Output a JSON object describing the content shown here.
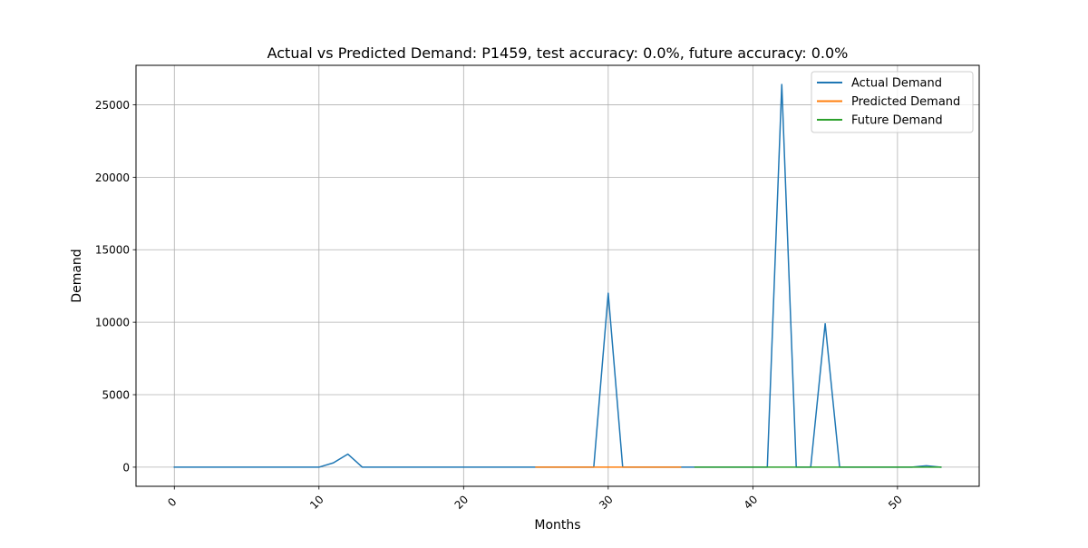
{
  "chart_data": {
    "type": "line",
    "title": "Actual vs Predicted Demand: P1459, test accuracy: 0.0%, future accuracy: 0.0%",
    "xlabel": "Months",
    "ylabel": "Demand",
    "xlim": [
      -2.65,
      55.65
    ],
    "ylim": [
      -1320,
      27720
    ],
    "xticks": [
      0,
      10,
      20,
      30,
      40,
      50
    ],
    "xtick_labels": [
      "0",
      "10",
      "20",
      "30",
      "40",
      "50"
    ],
    "yticks": [
      0,
      5000,
      10000,
      15000,
      20000,
      25000
    ],
    "ytick_labels": [
      "0",
      "5000",
      "10000",
      "15000",
      "20000",
      "25000"
    ],
    "grid": true,
    "legend_position": "top-right",
    "series": [
      {
        "name": "Actual Demand",
        "color": "#1f77b4",
        "x": [
          0,
          1,
          2,
          3,
          4,
          5,
          6,
          7,
          8,
          9,
          10,
          11,
          12,
          13,
          14,
          15,
          16,
          17,
          18,
          19,
          20,
          21,
          22,
          23,
          24,
          25,
          26,
          27,
          28,
          29,
          30,
          31,
          32,
          33,
          34,
          35,
          36,
          37,
          38,
          39,
          40,
          41,
          42,
          43,
          44,
          45,
          46,
          47,
          48,
          49,
          50,
          51,
          52,
          53
        ],
        "values": [
          0,
          0,
          0,
          0,
          0,
          0,
          0,
          0,
          0,
          0,
          0,
          300,
          900,
          0,
          0,
          0,
          0,
          0,
          0,
          0,
          0,
          0,
          0,
          0,
          0,
          0,
          0,
          0,
          0,
          0,
          12000,
          0,
          0,
          0,
          0,
          0,
          0,
          0,
          0,
          0,
          0,
          0,
          26400,
          0,
          0,
          9900,
          0,
          0,
          0,
          0,
          0,
          0,
          100,
          0
        ]
      },
      {
        "name": "Predicted Demand",
        "color": "#ff7f0e",
        "x": [
          25,
          26,
          27,
          28,
          29,
          30,
          31,
          32,
          33,
          34,
          35
        ],
        "values": [
          0,
          0,
          0,
          0,
          0,
          0,
          0,
          0,
          0,
          0,
          0
        ]
      },
      {
        "name": "Future Demand",
        "color": "#2ca02c",
        "x": [
          36,
          37,
          38,
          39,
          40,
          41,
          42,
          43,
          44,
          45,
          46,
          47,
          48,
          49,
          50,
          51,
          52,
          53
        ],
        "values": [
          0,
          0,
          0,
          0,
          0,
          0,
          0,
          0,
          0,
          0,
          0,
          0,
          0,
          0,
          0,
          0,
          0,
          0
        ]
      }
    ]
  }
}
